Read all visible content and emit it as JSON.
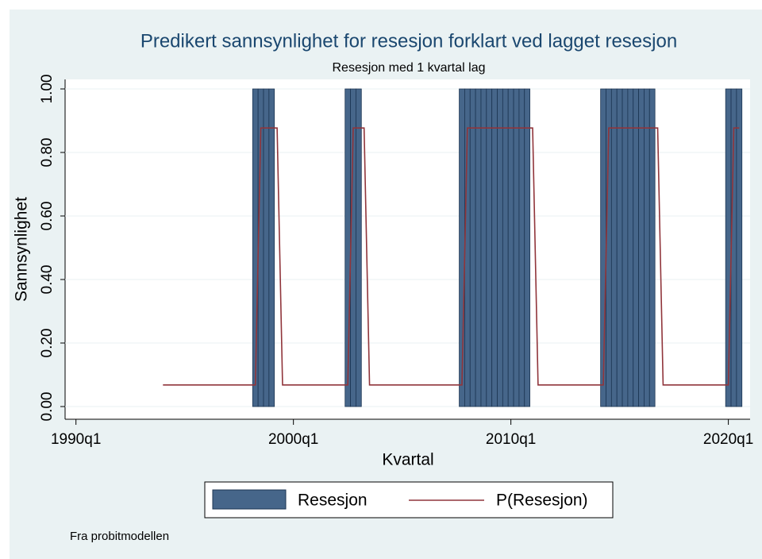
{
  "chart_data": {
    "type": "bar_line",
    "title": "Predikert sannsynlighet for resesjon forklart ved lagget resesjon",
    "subtitle": "Resesjon med 1 kvartal lag",
    "xlabel": "Kvartal",
    "ylabel": "Sannsynlighet",
    "note": "Fra probitmodellen",
    "xlim": [
      118,
      244
    ],
    "xticks": [
      {
        "value": 120,
        "label": "1990q1"
      },
      {
        "value": 160,
        "label": "2000q1"
      },
      {
        "value": 200,
        "label": "2010q1"
      },
      {
        "value": 240,
        "label": "2020q1"
      }
    ],
    "ylim": [
      -0.04,
      1.03
    ],
    "yticks": [
      {
        "value": 0,
        "label": "0.00"
      },
      {
        "value": 0.2,
        "label": "0.20"
      },
      {
        "value": 0.4,
        "label": "0.40"
      },
      {
        "value": 0.6,
        "label": "0.60"
      },
      {
        "value": 0.8,
        "label": "0.80"
      },
      {
        "value": 1,
        "label": "1.00"
      }
    ],
    "grid": true,
    "legend": "bottom",
    "series": [
      {
        "name": "Resesjon",
        "type": "bar",
        "color": "#46668a",
        "x": [
          153,
          154,
          155,
          156,
          170,
          171,
          172,
          191,
          192,
          193,
          194,
          195,
          196,
          197,
          198,
          199,
          200,
          201,
          202,
          203,
          217,
          218,
          219,
          220,
          221,
          222,
          223,
          224,
          225,
          226,
          240,
          241,
          242
        ],
        "values": [
          1,
          1,
          1,
          1,
          1,
          1,
          1,
          1,
          1,
          1,
          1,
          1,
          1,
          1,
          1,
          1,
          1,
          1,
          1,
          1,
          1,
          1,
          1,
          1,
          1,
          1,
          1,
          1,
          1,
          1,
          1,
          1,
          1
        ]
      },
      {
        "name": "P(Resesjon)",
        "type": "line",
        "color": "#90353b",
        "x": [
          136,
          137,
          138,
          139,
          140,
          141,
          142,
          143,
          144,
          145,
          146,
          147,
          148,
          149,
          150,
          151,
          152,
          153,
          154,
          155,
          156,
          157,
          158,
          159,
          160,
          161,
          162,
          163,
          164,
          165,
          166,
          167,
          168,
          169,
          170,
          171,
          172,
          173,
          174,
          175,
          176,
          177,
          178,
          179,
          180,
          181,
          182,
          183,
          184,
          185,
          186,
          187,
          188,
          189,
          190,
          191,
          192,
          193,
          194,
          195,
          196,
          197,
          198,
          199,
          200,
          201,
          202,
          203,
          204,
          205,
          206,
          207,
          208,
          209,
          210,
          211,
          212,
          213,
          214,
          215,
          216,
          217,
          218,
          219,
          220,
          221,
          222,
          223,
          224,
          225,
          226,
          227,
          228,
          229,
          230,
          231,
          232,
          233,
          234,
          235,
          236,
          237,
          238,
          239,
          240,
          241,
          242
        ],
        "values": [
          0.068,
          0.068,
          0.068,
          0.068,
          0.068,
          0.068,
          0.068,
          0.068,
          0.068,
          0.068,
          0.068,
          0.068,
          0.068,
          0.068,
          0.068,
          0.068,
          0.068,
          0.068,
          0.877,
          0.877,
          0.877,
          0.877,
          0.068,
          0.068,
          0.068,
          0.068,
          0.068,
          0.068,
          0.068,
          0.068,
          0.068,
          0.068,
          0.068,
          0.068,
          0.068,
          0.877,
          0.877,
          0.877,
          0.068,
          0.068,
          0.068,
          0.068,
          0.068,
          0.068,
          0.068,
          0.068,
          0.068,
          0.068,
          0.068,
          0.068,
          0.068,
          0.068,
          0.068,
          0.068,
          0.068,
          0.068,
          0.877,
          0.877,
          0.877,
          0.877,
          0.877,
          0.877,
          0.877,
          0.877,
          0.877,
          0.877,
          0.877,
          0.877,
          0.877,
          0.068,
          0.068,
          0.068,
          0.068,
          0.068,
          0.068,
          0.068,
          0.068,
          0.068,
          0.068,
          0.068,
          0.068,
          0.068,
          0.877,
          0.877,
          0.877,
          0.877,
          0.877,
          0.877,
          0.877,
          0.877,
          0.877,
          0.877,
          0.068,
          0.068,
          0.068,
          0.068,
          0.068,
          0.068,
          0.068,
          0.068,
          0.068,
          0.068,
          0.068,
          0.068,
          0.068,
          0.877,
          0.877
        ]
      }
    ]
  }
}
